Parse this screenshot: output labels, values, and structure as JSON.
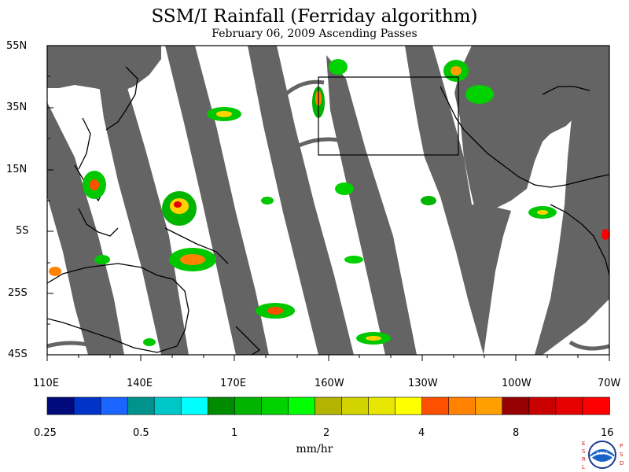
{
  "title": "SSM/I Rainfall (Ferriday algorithm)",
  "subtitle": "February 06, 2009  Ascending Passes",
  "map": {
    "lat_labels": [
      "55N",
      "35N",
      "15N",
      "5S",
      "25S",
      "45S"
    ],
    "lon_labels": [
      "110E",
      "140E",
      "170E",
      "160W",
      "130W",
      "100W",
      "70W"
    ],
    "lat_range": [
      -45,
      55
    ],
    "lon_range_deg_east": [
      110,
      290
    ],
    "box_region": {
      "lon_range_deg_east": [
        200,
        243
      ],
      "lat_range": [
        15,
        40
      ]
    }
  },
  "colorbar": {
    "units": "mm/hr",
    "tick_labels": [
      "0.25",
      "0.5",
      "1",
      "2",
      "4",
      "8",
      "16"
    ],
    "colors": [
      "#000a7a",
      "#0033c8",
      "#1a64ff",
      "#00928c",
      "#00c8c8",
      "#00ffff",
      "#008c00",
      "#00b400",
      "#00d200",
      "#00ff00",
      "#b4b400",
      "#d2d200",
      "#e6e600",
      "#ffff00",
      "#ff5000",
      "#ff8200",
      "#ffa000",
      "#960000",
      "#c80000",
      "#e60000",
      "#ff0000"
    ]
  },
  "no_data_color": "#646464",
  "logo": {
    "name": "NOAA",
    "left_letters": [
      "E",
      "S",
      "R",
      "L"
    ],
    "right_letters": [
      "P",
      "S",
      "D"
    ]
  }
}
